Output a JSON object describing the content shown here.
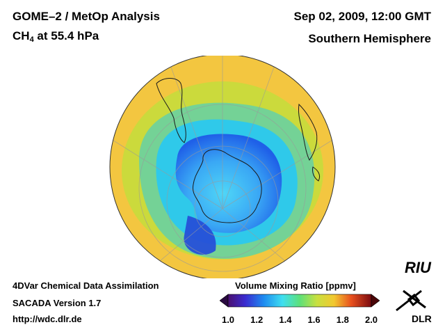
{
  "header": {
    "title": "GOME–2 / MetOp Analysis",
    "species": "CH",
    "species_sub": "4",
    "level": " at 55.4 hPa",
    "date": "Sep 02, 2009, 12:00 GMT",
    "region": "Southern Hemisphere"
  },
  "footer": {
    "line1": "4DVar Chemical Data Assimilation",
    "line2": "SACADA Version 1.7",
    "line3": "http://wdc.dlr.de"
  },
  "colorbar": {
    "title": "Volume Mixing Ratio [ppmv]",
    "ticks": [
      "1.0",
      "1.2",
      "1.4",
      "1.6",
      "1.8",
      "2.0"
    ],
    "min": 1.0,
    "max": 2.0
  },
  "logos": {
    "riu": "RIU",
    "dlr": "DLR"
  },
  "colors": {
    "background": "#f5cc4a",
    "vortex_dark": "#2b5fe0",
    "vortex_light": "#4ad2f5"
  }
}
